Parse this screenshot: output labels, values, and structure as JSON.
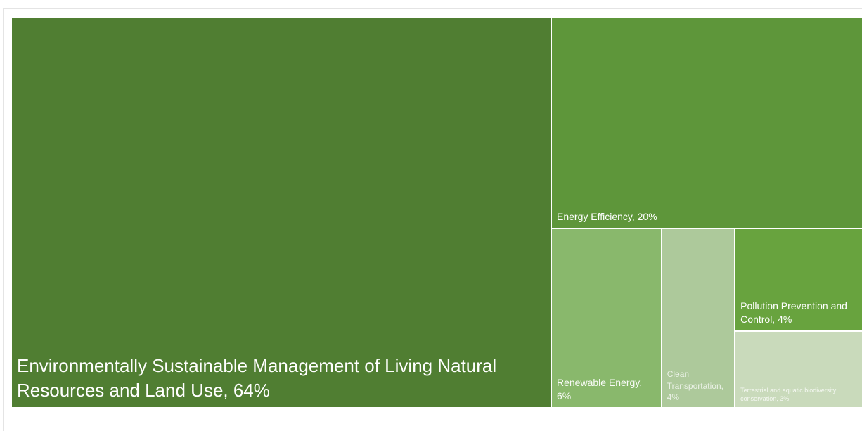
{
  "chart_data": {
    "type": "treemap",
    "labels": [
      "Environmentally Sustainable Management of Living Natural Resources and Land Use, 64%",
      "Energy Efficiency, 20%",
      "Renewable Energy, 6%",
      "Clean Transportation, 4%",
      "Pollution Prevention and Control, 4%",
      "Terrestrial and aquatic biodiversity conservation, 3%"
    ],
    "values": [
      64,
      20,
      6,
      4,
      4,
      3
    ],
    "colors": [
      "#507e32",
      "#5e963a",
      "#89b86c",
      "#adc99b",
      "#68a33e",
      "#c9dabb"
    ]
  }
}
